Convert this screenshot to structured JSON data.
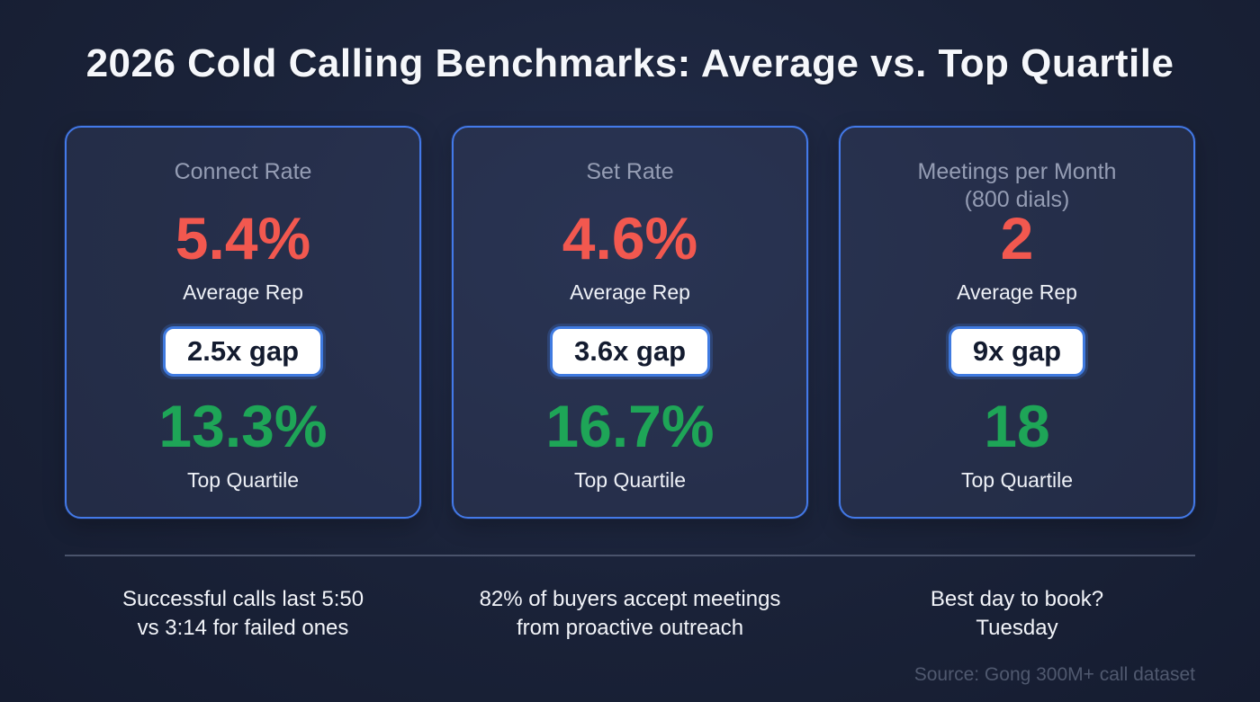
{
  "title": "2026 Cold Calling Benchmarks: Average vs. Top Quartile",
  "cards": [
    {
      "label": "Connect Rate",
      "avg_value": "5.4%",
      "avg_label": "Average Rep",
      "gap": "2.5x gap",
      "top_value": "13.3%",
      "top_label": "Top Quartile"
    },
    {
      "label": "Set Rate",
      "avg_value": "4.6%",
      "avg_label": "Average Rep",
      "gap": "3.6x gap",
      "top_value": "16.7%",
      "top_label": "Top Quartile"
    },
    {
      "label": "Meetings per Month\n(800 dials)",
      "avg_value": "2",
      "avg_label": "Average Rep",
      "gap": "9x gap",
      "top_value": "18",
      "top_label": "Top Quartile"
    }
  ],
  "footnotes": [
    "Successful calls last 5:50\nvs 3:14 for failed ones",
    "82% of buyers accept meetings\nfrom proactive outreach",
    "Best day to book?\nTuesday"
  ],
  "source": "Source: Gong 300M+ call dataset",
  "colors": {
    "background": "#1a2238",
    "card_border": "#4379e8",
    "average_red": "#f2584f",
    "top_quartile_green": "#1ea557",
    "muted_label": "#959db4",
    "source_text": "#50596f"
  },
  "chart_data": {
    "type": "table",
    "title": "2026 Cold Calling Benchmarks: Average vs. Top Quartile",
    "categories": [
      "Connect Rate",
      "Set Rate",
      "Meetings per Month (800 dials)"
    ],
    "series": [
      {
        "name": "Average Rep",
        "values": [
          5.4,
          4.6,
          2
        ]
      },
      {
        "name": "Top Quartile",
        "values": [
          13.3,
          16.7,
          18
        ]
      }
    ],
    "units": [
      "percent",
      "percent",
      "meetings"
    ],
    "gap_multipliers": [
      "2.5x",
      "3.6x",
      "9x"
    ],
    "annotations": [
      "Successful calls last 5:50 vs 3:14 for failed ones",
      "82% of buyers accept meetings from proactive outreach",
      "Best day to book? Tuesday"
    ],
    "source": "Gong 300M+ call dataset",
    "legend_position": "none",
    "grid": false
  }
}
